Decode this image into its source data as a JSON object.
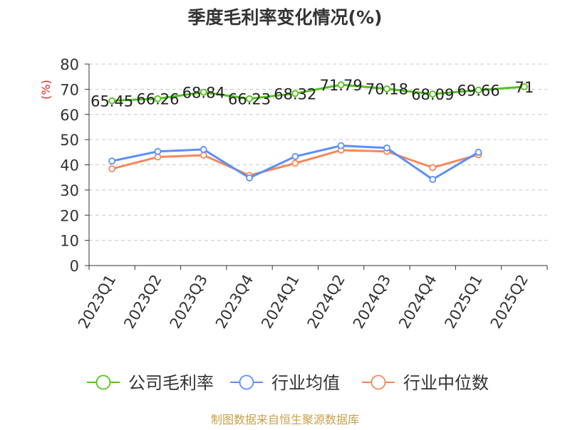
{
  "chart_data": {
    "type": "line",
    "title": "季度毛利率变化情况(%)",
    "ylabel": "(%)",
    "xlabel": "",
    "ylim": [
      0,
      80
    ],
    "yticks": [
      0,
      10,
      20,
      30,
      40,
      50,
      60,
      70,
      80
    ],
    "grid": "horizontal-dashed",
    "legend_position": "bottom",
    "categories": [
      "2023Q1",
      "2023Q2",
      "2023Q3",
      "2023Q4",
      "2024Q1",
      "2024Q2",
      "2024Q3",
      "2024Q4",
      "2025Q1",
      "2025Q2"
    ],
    "series": [
      {
        "name": "公司毛利率",
        "color": "#52c41a",
        "values": [
          65.45,
          66.26,
          68.84,
          66.23,
          68.32,
          71.79,
          70.18,
          68.09,
          69.66,
          71
        ],
        "labels": [
          "65.45",
          "66.26",
          "68.84",
          "66.23",
          "68.32",
          "71.79",
          "70.18",
          "68.09",
          "69.66",
          "71"
        ]
      },
      {
        "name": "行业均值",
        "color": "#5b8ff9",
        "values": [
          41.5,
          45.3,
          46.1,
          34.8,
          43.3,
          47.6,
          46.7,
          34.2,
          45.0,
          null
        ]
      },
      {
        "name": "行业中位数",
        "color": "#f4885a",
        "values": [
          38.4,
          43.1,
          43.8,
          35.8,
          40.6,
          45.8,
          45.3,
          38.9,
          44.0,
          null
        ]
      }
    ],
    "source_note": "制图数据来自恒生聚源数据库"
  }
}
